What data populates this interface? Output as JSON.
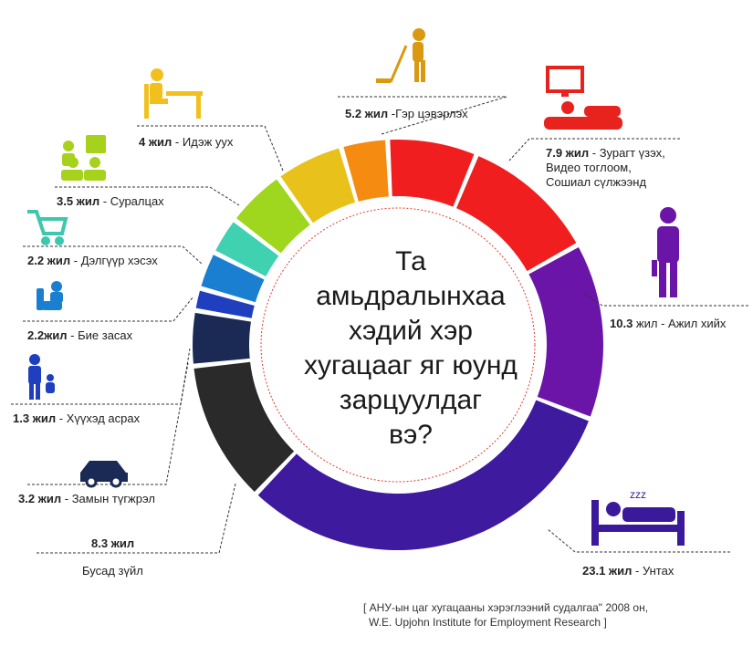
{
  "title_lines": [
    "Та",
    "амьдралынхаа",
    "хэдий хэр",
    "хугацааг яг юунд",
    "зарцуулдаг",
    "вэ?"
  ],
  "source_lines": [
    "[ АНУ-ын цаг хугацааны хэрэглээний судалгаа\" 2008 он,",
    "W.E. Upjohn Institute for Employment Research ]"
  ],
  "icons": [
    "broom-person-icon",
    "tv-watching-icon",
    "standing-worker-icon",
    "bed-sleeping-icon",
    "eating-at-table-icon",
    "classroom-icon",
    "shopping-cart-icon",
    "toilet-person-icon",
    "parent-child-icon",
    "car-icon"
  ],
  "chart_data": {
    "type": "donut",
    "unit": "жил",
    "series": [
      {
        "key": "cleaning",
        "value": 5.2,
        "value_label": "5.2 жил",
        "label": " -Гэр цэвэрлэх",
        "color": "#F01E1E"
      },
      {
        "key": "tv",
        "value": 7.9,
        "value_label": "7.9 жил",
        "label": " - Зурагт үзэх,",
        "label2": "Видео тоглоом,",
        "label3": "Сошиал сүлжээнд",
        "color": "#F01E1E"
      },
      {
        "key": "work",
        "value": 10.3,
        "value_label": "10.3",
        "label": " жил - Ажил хийх",
        "color": "#6A15A8"
      },
      {
        "key": "sleep",
        "value": 23.1,
        "value_label": "23.1 жил",
        "label": " - Унтах",
        "color": "#3D1A9E"
      },
      {
        "key": "other",
        "value": 8.3,
        "value_label": "8.3 жил",
        "label": "Бусад зүйл",
        "color": "#2A2A2A"
      },
      {
        "key": "commute",
        "value": 3.2,
        "value_label": "3.2 жил",
        "label": " - Замын түгжрэл",
        "color": "#1A2A55"
      },
      {
        "key": "childcare",
        "value": 1.3,
        "value_label": "1.3 жил",
        "label": " - Хүүхэд асрах",
        "color": "#1F3FBF"
      },
      {
        "key": "toilet",
        "value": 2.2,
        "value_label": "2.2жил",
        "label": " - Бие засах",
        "color": "#1A7FD1"
      },
      {
        "key": "shopping",
        "value": 2.2,
        "value_label": "2.2 жил",
        "label": " - Дэлгүүр хэсэх",
        "color": "#3FD1B0"
      },
      {
        "key": "study",
        "value": 3.5,
        "value_label": "3.5 жил",
        "label": " - Суралцах",
        "color": "#9FD61E"
      },
      {
        "key": "eating",
        "value": 4,
        "value_label": "4 жил",
        "label": " - Идэж уух",
        "color": "#E8C21A"
      },
      {
        "key": "cleaning_orange",
        "value": 0,
        "value_label": "",
        "label": "",
        "color": "#F58B11"
      }
    ]
  }
}
